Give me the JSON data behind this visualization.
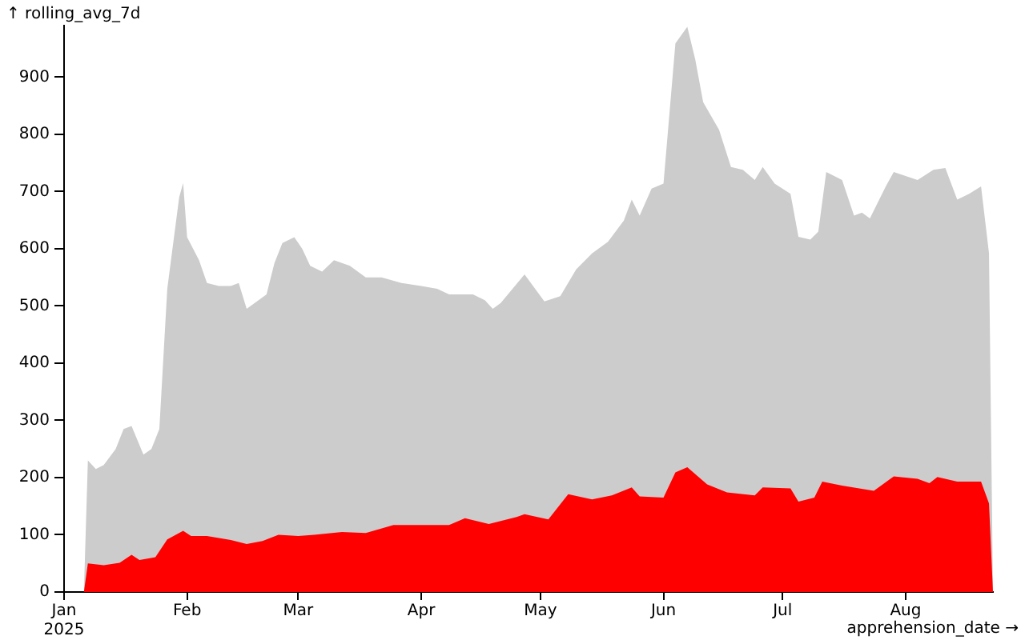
{
  "chart_data": {
    "type": "area",
    "xlabel": "apprehension_date →",
    "ylabel": "↑ rolling_avg_7d",
    "xlim": [
      "2025-01-01",
      "2025-08-23"
    ],
    "xticks": [
      {
        "value": "2025-01-01",
        "label": "Jan\n2025"
      },
      {
        "value": "2025-02-01",
        "label": "Feb"
      },
      {
        "value": "2025-03-01",
        "label": "Mar"
      },
      {
        "value": "2025-04-01",
        "label": "Apr"
      },
      {
        "value": "2025-05-01",
        "label": "May"
      },
      {
        "value": "2025-06-01",
        "label": "Jun"
      },
      {
        "value": "2025-07-01",
        "label": "Jul"
      },
      {
        "value": "2025-08-01",
        "label": "Aug"
      }
    ],
    "ylim": [
      0,
      990
    ],
    "yticks": [
      0,
      100,
      200,
      300,
      400,
      500,
      600,
      700,
      800,
      900
    ],
    "grid": false,
    "legend": false,
    "series": [
      {
        "color": "#cccccc",
        "x": [
          "2025-01-06",
          "2025-01-07",
          "2025-01-09",
          "2025-01-11",
          "2025-01-14",
          "2025-01-16",
          "2025-01-18",
          "2025-01-21",
          "2025-01-23",
          "2025-01-25",
          "2025-01-27",
          "2025-01-30",
          "2025-01-31",
          "2025-02-01",
          "2025-02-04",
          "2025-02-06",
          "2025-02-09",
          "2025-02-12",
          "2025-02-14",
          "2025-02-16",
          "2025-02-19",
          "2025-02-21",
          "2025-02-23",
          "2025-02-25",
          "2025-02-28",
          "2025-03-02",
          "2025-03-04",
          "2025-03-07",
          "2025-03-10",
          "2025-03-14",
          "2025-03-18",
          "2025-03-22",
          "2025-03-27",
          "2025-04-01",
          "2025-04-05",
          "2025-04-08",
          "2025-04-12",
          "2025-04-14",
          "2025-04-17",
          "2025-04-19",
          "2025-04-21",
          "2025-04-27",
          "2025-05-02",
          "2025-05-06",
          "2025-05-10",
          "2025-05-14",
          "2025-05-18",
          "2025-05-22",
          "2025-05-24",
          "2025-05-26",
          "2025-05-29",
          "2025-06-01",
          "2025-06-04",
          "2025-06-07",
          "2025-06-09",
          "2025-06-11",
          "2025-06-15",
          "2025-06-18",
          "2025-06-21",
          "2025-06-24",
          "2025-06-26",
          "2025-06-29",
          "2025-07-03",
          "2025-07-05",
          "2025-07-08",
          "2025-07-10",
          "2025-07-12",
          "2025-07-16",
          "2025-07-19",
          "2025-07-21",
          "2025-07-23",
          "2025-07-27",
          "2025-07-29",
          "2025-08-04",
          "2025-08-08",
          "2025-08-11",
          "2025-08-14",
          "2025-08-17",
          "2025-08-20",
          "2025-08-22",
          "2025-08-23"
        ],
        "values": [
          0,
          230,
          215,
          222,
          250,
          285,
          290,
          240,
          250,
          285,
          530,
          690,
          715,
          620,
          580,
          540,
          535,
          535,
          540,
          495,
          510,
          520,
          575,
          610,
          620,
          600,
          570,
          560,
          580,
          570,
          550,
          550,
          540,
          535,
          530,
          520,
          520,
          520,
          510,
          495,
          505,
          555,
          508,
          517,
          564,
          592,
          612,
          649,
          686,
          658,
          705,
          714,
          959,
          988,
          931,
          856,
          808,
          743,
          738,
          720,
          743,
          714,
          696,
          621,
          616,
          630,
          734,
          720,
          658,
          663,
          653,
          709,
          734,
          720,
          738,
          741,
          686,
          696,
          709,
          592,
          0
        ]
      },
      {
        "color": "#ff0000",
        "x": [
          "2025-01-06",
          "2025-01-07",
          "2025-01-11",
          "2025-01-15",
          "2025-01-18",
          "2025-01-20",
          "2025-01-24",
          "2025-01-27",
          "2025-01-31",
          "2025-02-02",
          "2025-02-06",
          "2025-02-12",
          "2025-02-16",
          "2025-02-20",
          "2025-02-24",
          "2025-03-01",
          "2025-03-05",
          "2025-03-12",
          "2025-03-18",
          "2025-03-25",
          "2025-04-01",
          "2025-04-08",
          "2025-04-12",
          "2025-04-18",
          "2025-04-25",
          "2025-04-27",
          "2025-05-03",
          "2025-05-08",
          "2025-05-14",
          "2025-05-19",
          "2025-05-24",
          "2025-05-26",
          "2025-06-01",
          "2025-06-04",
          "2025-06-07",
          "2025-06-12",
          "2025-06-17",
          "2025-06-24",
          "2025-06-26",
          "2025-07-03",
          "2025-07-05",
          "2025-07-09",
          "2025-07-11",
          "2025-07-16",
          "2025-07-24",
          "2025-07-29",
          "2025-08-04",
          "2025-08-07",
          "2025-08-09",
          "2025-08-14",
          "2025-08-20",
          "2025-08-22",
          "2025-08-23"
        ],
        "values": [
          0,
          50,
          47,
          51,
          65,
          56,
          61,
          92,
          107,
          98,
          98,
          91,
          84,
          89,
          100,
          98,
          100,
          105,
          103,
          117,
          117,
          117,
          129,
          119,
          131,
          136,
          127,
          171,
          162,
          169,
          183,
          167,
          165,
          209,
          218,
          188,
          174,
          169,
          183,
          181,
          158,
          165,
          193,
          186,
          177,
          202,
          198,
          190,
          201,
          193,
          193,
          155,
          0
        ]
      }
    ]
  }
}
